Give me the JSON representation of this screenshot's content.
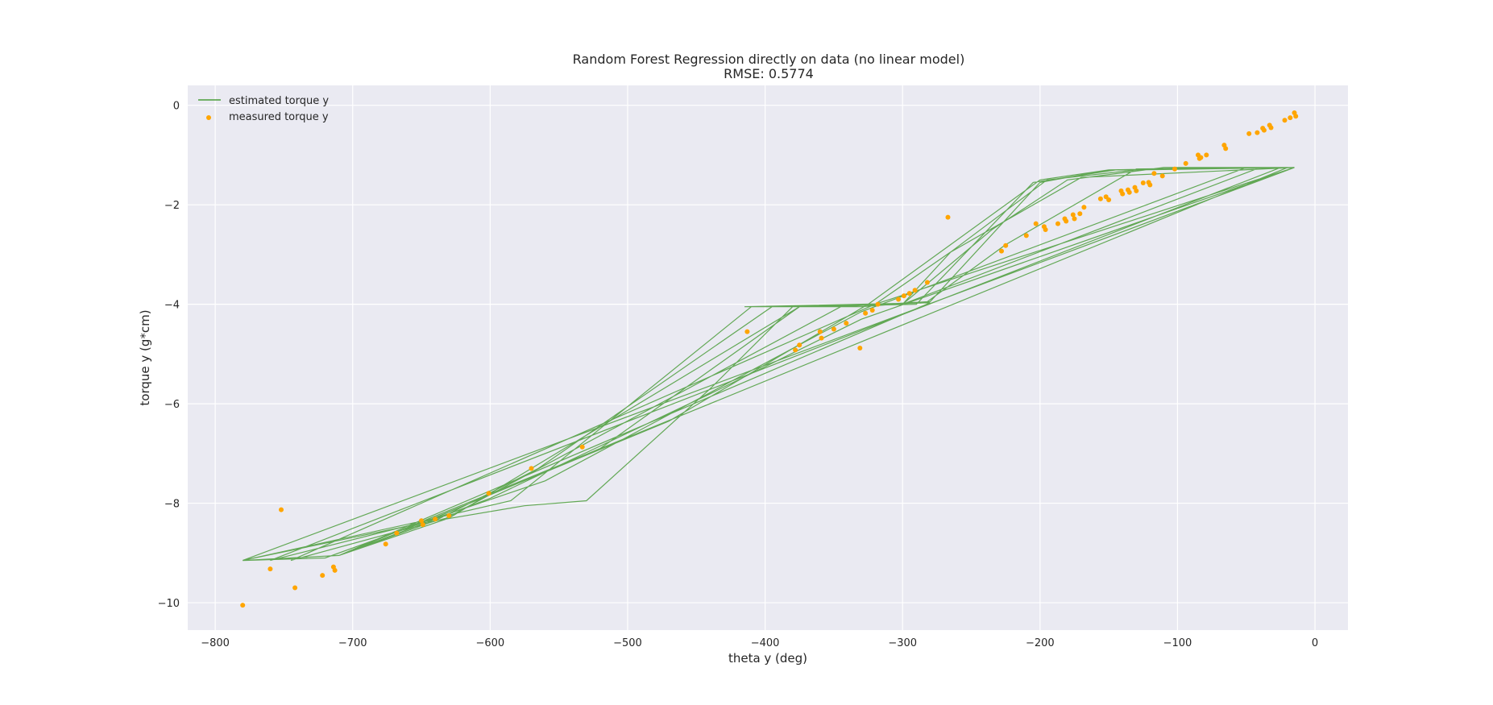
{
  "chart_data": {
    "type": "line",
    "title": "Random Forest Regression directly on data (no linear model)",
    "subtitle": "RMSE: 0.5774",
    "xlabel": "theta y (deg)",
    "ylabel": "torque y (g*cm)",
    "xlim": [
      -820,
      24
    ],
    "ylim": [
      -10.55,
      0.4
    ],
    "xticks": [
      -800,
      -700,
      -600,
      -500,
      -400,
      -300,
      -200,
      -100,
      0
    ],
    "yticks": [
      0,
      -2,
      -4,
      -6,
      -8,
      -10
    ],
    "xtick_labels": [
      "−800",
      "−700",
      "−600",
      "−500",
      "−400",
      "−300",
      "−200",
      "−100",
      "0"
    ],
    "ytick_labels": [
      "0",
      "−2",
      "−4",
      "−6",
      "−8",
      "−10"
    ],
    "grid": true,
    "legend_placement": "top-left",
    "colors": {
      "background": "#eaeaf2",
      "grid": "#ffffff",
      "estimated": "#4a9c3a",
      "measured": "#ffa500"
    },
    "series": [
      {
        "name": "estimated torque y",
        "kind": "line",
        "points": [
          [
            -780,
            -9.15
          ],
          [
            -720,
            -9.1
          ],
          [
            -650,
            -8.4
          ],
          [
            -575,
            -8.05
          ],
          [
            -530,
            -7.95
          ],
          [
            -440,
            -5.7
          ],
          [
            -380,
            -4.05
          ],
          [
            -320,
            -4.0
          ],
          [
            -265,
            -2.95
          ],
          [
            -195,
            -1.5
          ],
          [
            -130,
            -1.3
          ],
          [
            -15,
            -1.25
          ],
          [
            -780,
            -9.15
          ],
          [
            -640,
            -8.3
          ],
          [
            -585,
            -7.95
          ],
          [
            -410,
            -4.05
          ],
          [
            -330,
            -4.05
          ],
          [
            -280,
            -3.95
          ],
          [
            -200,
            -1.55
          ],
          [
            -150,
            -1.3
          ],
          [
            -25,
            -1.25
          ],
          [
            -760,
            -9.15
          ],
          [
            -645,
            -8.35
          ],
          [
            -520,
            -6.9
          ],
          [
            -375,
            -4.05
          ],
          [
            -300,
            -4.0
          ],
          [
            -235,
            -2.5
          ],
          [
            -180,
            -1.5
          ],
          [
            -110,
            -1.25
          ],
          [
            -20,
            -1.25
          ],
          [
            -710,
            -9.05
          ],
          [
            -630,
            -8.3
          ],
          [
            -375,
            -4.05
          ],
          [
            -290,
            -4.0
          ],
          [
            -205,
            -1.55
          ],
          [
            -145,
            -1.3
          ],
          [
            -15,
            -1.25
          ],
          [
            -320,
            -4.0
          ],
          [
            -745,
            -9.15
          ],
          [
            -632,
            -8.3
          ],
          [
            -345,
            -4.05
          ],
          [
            -282,
            -3.95
          ],
          [
            -225,
            -2.8
          ],
          [
            -130,
            -1.28
          ],
          [
            -40,
            -1.25
          ],
          [
            -300,
            -4.0
          ],
          [
            -380,
            -4.05
          ],
          [
            -415,
            -4.05
          ],
          [
            -280,
            -3.97
          ],
          [
            -710,
            -9.05
          ],
          [
            -640,
            -8.35
          ],
          [
            -565,
            -7.3
          ],
          [
            -395,
            -4.05
          ],
          [
            -300,
            -4.0
          ],
          [
            -265,
            -2.95
          ],
          [
            -170,
            -1.45
          ],
          [
            -15,
            -1.25
          ],
          [
            -330,
            -4.3
          ],
          [
            -440,
            -5.8
          ],
          [
            -600,
            -7.9
          ],
          [
            -710,
            -9.05
          ],
          [
            -780,
            -9.15
          ],
          [
            -650,
            -8.4
          ],
          [
            -470,
            -6.35
          ],
          [
            -325,
            -4.0
          ],
          [
            -200,
            -1.5
          ],
          [
            -150,
            -1.3
          ],
          [
            -50,
            -1.25
          ],
          [
            -330,
            -4.15
          ],
          [
            -560,
            -7.55
          ],
          [
            -645,
            -8.35
          ],
          [
            -760,
            -9.15
          ]
        ]
      },
      {
        "name": "measured torque y",
        "kind": "scatter",
        "points": [
          [
            -780,
            -10.05
          ],
          [
            -760,
            -9.32
          ],
          [
            -752,
            -8.13
          ],
          [
            -742,
            -9.7
          ],
          [
            -722,
            -9.45
          ],
          [
            -714,
            -9.28
          ],
          [
            -713,
            -9.35
          ],
          [
            -676,
            -8.82
          ],
          [
            -668,
            -8.6
          ],
          [
            -650,
            -8.35
          ],
          [
            -649,
            -8.43
          ],
          [
            -640,
            -8.32
          ],
          [
            -630,
            -8.25
          ],
          [
            -601,
            -7.8
          ],
          [
            -570,
            -7.3
          ],
          [
            -533,
            -6.87
          ],
          [
            -413,
            -4.55
          ],
          [
            -378,
            -4.92
          ],
          [
            -375,
            -4.82
          ],
          [
            -360,
            -4.55
          ],
          [
            -359,
            -4.68
          ],
          [
            -350,
            -4.5
          ],
          [
            -341,
            -4.38
          ],
          [
            -331,
            -4.88
          ],
          [
            -327,
            -4.18
          ],
          [
            -322,
            -4.12
          ],
          [
            -318,
            -4.0
          ],
          [
            -303,
            -3.9
          ],
          [
            -299,
            -3.83
          ],
          [
            -295,
            -3.78
          ],
          [
            -291,
            -3.72
          ],
          [
            -282,
            -3.56
          ],
          [
            -267,
            -2.25
          ],
          [
            -228,
            -2.93
          ],
          [
            -225,
            -2.82
          ],
          [
            -210,
            -2.62
          ],
          [
            -203,
            -2.38
          ],
          [
            -197,
            -2.44
          ],
          [
            -196,
            -2.5
          ],
          [
            -187,
            -2.38
          ],
          [
            -182,
            -2.28
          ],
          [
            -181,
            -2.33
          ],
          [
            -176,
            -2.2
          ],
          [
            -175,
            -2.28
          ],
          [
            -171,
            -2.18
          ],
          [
            -168,
            -2.05
          ],
          [
            -156,
            -1.88
          ],
          [
            -152,
            -1.84
          ],
          [
            -150,
            -1.9
          ],
          [
            -141,
            -1.72
          ],
          [
            -140,
            -1.78
          ],
          [
            -136,
            -1.7
          ],
          [
            -135,
            -1.75
          ],
          [
            -131,
            -1.65
          ],
          [
            -130,
            -1.72
          ],
          [
            -125,
            -1.56
          ],
          [
            -121,
            -1.55
          ],
          [
            -120,
            -1.6
          ],
          [
            -117,
            -1.37
          ],
          [
            -111,
            -1.42
          ],
          [
            -102,
            -1.28
          ],
          [
            -94,
            -1.17
          ],
          [
            -85,
            -1.0
          ],
          [
            -84,
            -1.07
          ],
          [
            -83,
            -1.05
          ],
          [
            -79,
            -1.0
          ],
          [
            -66,
            -0.8
          ],
          [
            -65,
            -0.87
          ],
          [
            -48,
            -0.57
          ],
          [
            -42,
            -0.55
          ],
          [
            -38,
            -0.46
          ],
          [
            -37,
            -0.5
          ],
          [
            -33,
            -0.4
          ],
          [
            -32,
            -0.45
          ],
          [
            -22,
            -0.3
          ],
          [
            -18,
            -0.25
          ],
          [
            -15,
            -0.15
          ],
          [
            -14,
            -0.22
          ]
        ]
      }
    ]
  }
}
